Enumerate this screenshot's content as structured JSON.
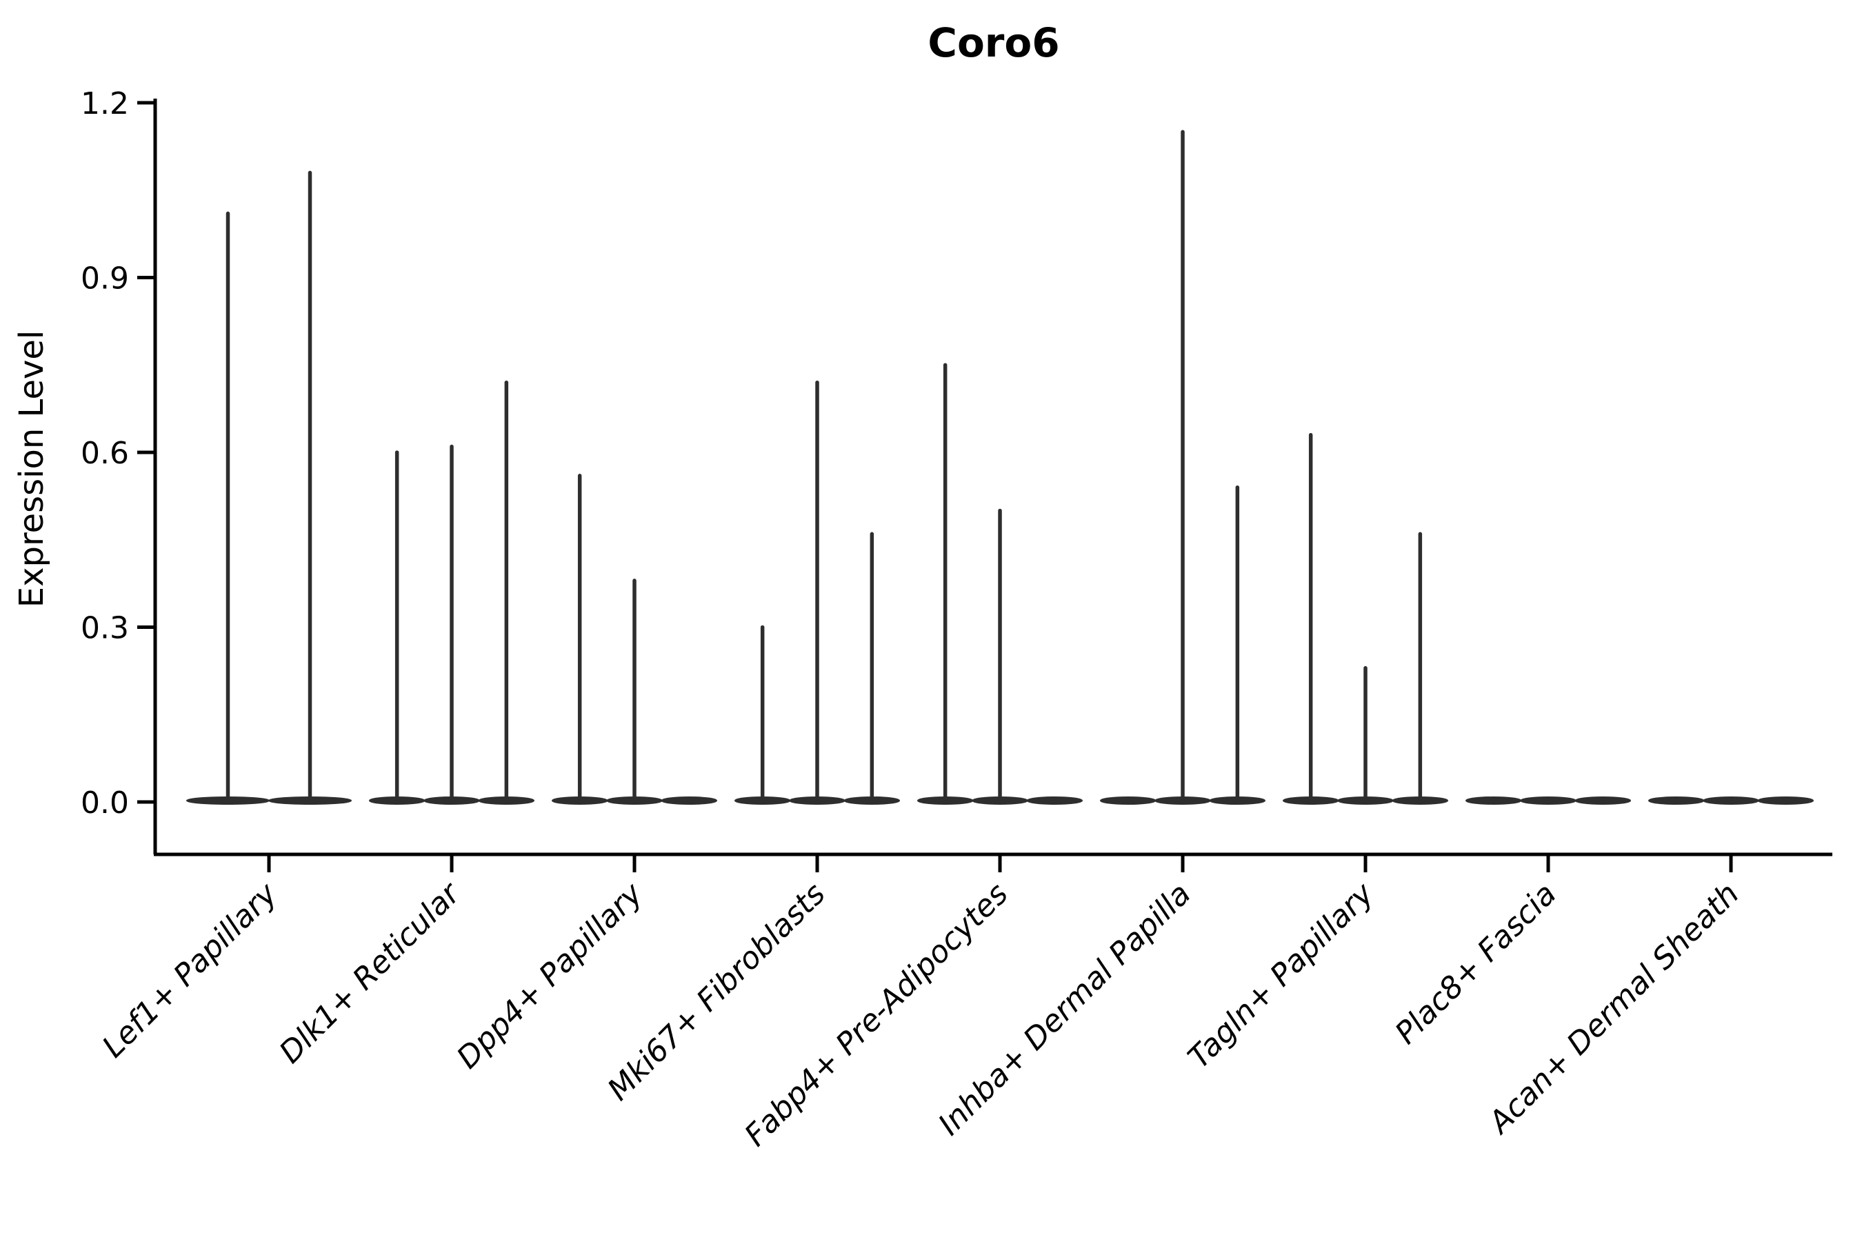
{
  "title": "Coro6",
  "axis": {
    "ylabel": "Expression Level",
    "yticks": [
      "0.0",
      "0.3",
      "0.6",
      "0.9",
      "1.2"
    ]
  },
  "colors": {
    "violin": "#2e2e2e",
    "axis": "#000000",
    "background": "#ffffff"
  },
  "chart_data": {
    "type": "violin",
    "title": "Coro6",
    "xlabel": "",
    "ylabel": "Expression Level",
    "ylim": [
      0,
      1.2
    ],
    "yticks": [
      0.0,
      0.3,
      0.6,
      0.9,
      1.2
    ],
    "grid": false,
    "legend_position": "none",
    "categories": [
      "Lef1+ Papillary",
      "Dlk1+ Reticular",
      "Dpp4+ Papillary",
      "Mki67+ Fibroblasts",
      "Fabp4+ Pre-Adipocytes",
      "Inhba+ Dermal Papilla",
      "Tagln+ Papillary",
      "Plac8+ Fascia",
      "Acan+ Dermal Sheath"
    ],
    "groups": [
      {
        "category": "Lef1+ Papillary",
        "violins": [
          {
            "max": 1.01
          },
          {
            "max": 1.08
          }
        ]
      },
      {
        "category": "Dlk1+ Reticular",
        "violins": [
          {
            "max": 0.6
          },
          {
            "max": 0.61
          },
          {
            "max": 0.72
          }
        ]
      },
      {
        "category": "Dpp4+ Papillary",
        "violins": [
          {
            "max": 0.56
          },
          {
            "max": 0.38
          },
          {
            "max": null
          }
        ]
      },
      {
        "category": "Mki67+ Fibroblasts",
        "violins": [
          {
            "max": 0.3
          },
          {
            "max": 0.72
          },
          {
            "max": 0.46
          }
        ]
      },
      {
        "category": "Fabp4+ Pre-Adipocytes",
        "violins": [
          {
            "max": 0.75
          },
          {
            "max": 0.5
          },
          {
            "max": null
          }
        ]
      },
      {
        "category": "Inhba+ Dermal Papilla",
        "violins": [
          {
            "max": null
          },
          {
            "max": 1.15
          },
          {
            "max": 0.54
          }
        ]
      },
      {
        "category": "Tagln+ Papillary",
        "violins": [
          {
            "max": 0.63
          },
          {
            "max": 0.23
          },
          {
            "max": 0.46
          }
        ]
      },
      {
        "category": "Plac8+ Fascia",
        "violins": [
          {
            "max": null
          },
          {
            "max": null
          },
          {
            "max": null
          }
        ]
      },
      {
        "category": "Acan+ Dermal Sheath",
        "violins": [
          {
            "max": null
          },
          {
            "max": null
          },
          {
            "max": null
          }
        ]
      }
    ],
    "note": "All violins are density-collapsed at 0 (flat body) with a thin tail up to the max expression value; max = null means no tail above 0."
  }
}
